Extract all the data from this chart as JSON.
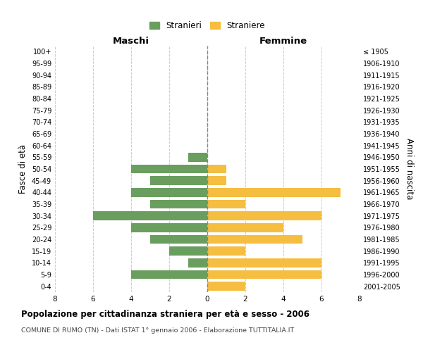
{
  "age_groups": [
    "100+",
    "95-99",
    "90-94",
    "85-89",
    "80-84",
    "75-79",
    "70-74",
    "65-69",
    "60-64",
    "55-59",
    "50-54",
    "45-49",
    "40-44",
    "35-39",
    "30-34",
    "25-29",
    "20-24",
    "15-19",
    "10-14",
    "5-9",
    "0-4"
  ],
  "birth_years": [
    "≤ 1905",
    "1906-1910",
    "1911-1915",
    "1916-1920",
    "1921-1925",
    "1926-1930",
    "1931-1935",
    "1936-1940",
    "1941-1945",
    "1946-1950",
    "1951-1955",
    "1956-1960",
    "1961-1965",
    "1966-1970",
    "1971-1975",
    "1976-1980",
    "1981-1985",
    "1986-1990",
    "1991-1995",
    "1996-2000",
    "2001-2005"
  ],
  "males": [
    0,
    0,
    0,
    0,
    0,
    0,
    0,
    0,
    0,
    1,
    4,
    3,
    4,
    3,
    6,
    4,
    3,
    2,
    1,
    4,
    0
  ],
  "females": [
    0,
    0,
    0,
    0,
    0,
    0,
    0,
    0,
    0,
    0,
    1,
    1,
    7,
    2,
    6,
    4,
    5,
    2,
    6,
    6,
    2
  ],
  "male_color": "#6a9e5f",
  "female_color": "#f5be41",
  "title": "Popolazione per cittadinanza straniera per età e sesso - 2006",
  "subtitle": "COMUNE DI RUMO (TN) - Dati ISTAT 1° gennaio 2006 - Elaborazione TUTTITALIA.IT",
  "xlabel_left": "Maschi",
  "xlabel_right": "Femmine",
  "ylabel_left": "Fasce di età",
  "ylabel_right": "Anni di nascita",
  "legend_male": "Stranieri",
  "legend_female": "Straniere",
  "xlim": 8,
  "background_color": "#ffffff",
  "grid_color": "#cccccc"
}
